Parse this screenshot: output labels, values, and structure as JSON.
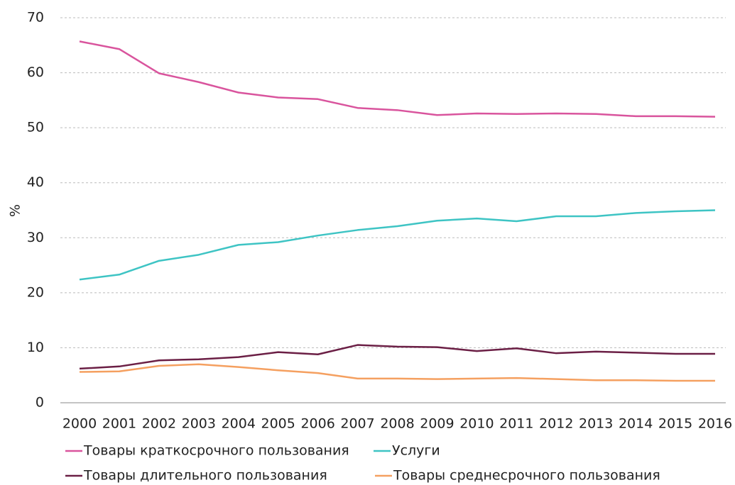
{
  "chart_data": {
    "type": "line",
    "ylabel": "%",
    "categories": [
      "2000",
      "2001",
      "2002",
      "2003",
      "2004",
      "2005",
      "2006",
      "2007",
      "2008",
      "2009",
      "2010",
      "2011",
      "2012",
      "2013",
      "2014",
      "2015",
      "2016"
    ],
    "series": [
      {
        "name": "Товары краткосрочного пользования",
        "color": "#d9549d",
        "values": [
          65.7,
          64.3,
          59.9,
          58.3,
          56.4,
          55.5,
          55.2,
          53.6,
          53.2,
          52.3,
          52.6,
          52.5,
          52.6,
          52.5,
          52.1,
          52.1,
          52.0
        ]
      },
      {
        "name": "Услуги",
        "color": "#3ec4c4",
        "values": [
          22.4,
          23.3,
          25.8,
          26.9,
          28.7,
          29.2,
          30.4,
          31.4,
          32.1,
          33.1,
          33.5,
          33.0,
          33.9,
          33.9,
          34.5,
          34.8,
          35.0
        ]
      },
      {
        "name": "Товары длительного пользования",
        "color": "#6b1f45",
        "values": [
          6.2,
          6.6,
          7.7,
          7.9,
          8.3,
          9.2,
          8.8,
          10.5,
          10.2,
          10.1,
          9.4,
          9.9,
          9.0,
          9.3,
          9.1,
          8.9,
          8.9
        ]
      },
      {
        "name": "Товары среднесрочного пользования",
        "color": "#f5a060",
        "values": [
          5.6,
          5.7,
          6.7,
          7.0,
          6.5,
          5.9,
          5.4,
          4.4,
          4.4,
          4.3,
          4.4,
          4.5,
          4.3,
          4.1,
          4.1,
          4.0,
          4.0
        ]
      }
    ],
    "ylim": [
      0,
      70
    ],
    "yticks": [
      0,
      10,
      20,
      30,
      40,
      50,
      60,
      70
    ],
    "grid": true
  }
}
